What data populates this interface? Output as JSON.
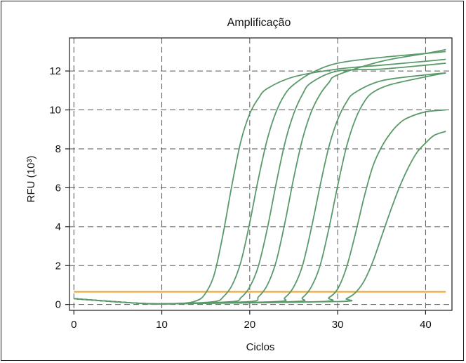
{
  "chart_data": {
    "type": "line",
    "title": "Amplificação",
    "xlabel": "Ciclos",
    "ylabel": "RFU (10³)",
    "xlim": [
      -0.5,
      43
    ],
    "ylim": [
      -0.3,
      13.7
    ],
    "x_ticks": [
      0,
      10,
      20,
      30,
      40
    ],
    "y_ticks": [
      0,
      2,
      4,
      6,
      8,
      10,
      12
    ],
    "grid": true,
    "threshold": {
      "value": 0.65,
      "color": "#f0a020"
    },
    "series_color": "#5a9a6a",
    "series": [
      {
        "x": [
          0,
          8,
          12,
          14,
          15,
          16,
          17,
          18,
          19,
          20,
          21,
          22,
          25,
          30,
          35,
          40,
          42.3
        ],
        "values": [
          0.3,
          0.05,
          0.05,
          0.2,
          0.6,
          1.6,
          3.7,
          6.2,
          8.4,
          9.8,
          10.6,
          11.1,
          11.7,
          12.1,
          12.3,
          12.5,
          12.6
        ]
      },
      {
        "x": [
          0,
          8,
          12,
          16,
          17,
          18,
          19,
          20,
          21,
          22,
          23,
          24,
          25,
          27,
          30,
          35,
          40,
          42.3
        ],
        "values": [
          0.3,
          0.05,
          0.05,
          0.15,
          0.4,
          1.0,
          2.2,
          4.2,
          6.5,
          8.5,
          9.9,
          10.8,
          11.3,
          11.9,
          12.4,
          12.7,
          12.9,
          13.0
        ]
      },
      {
        "x": [
          0,
          8,
          12,
          18,
          19,
          20,
          21,
          22,
          23,
          24,
          25,
          26,
          27,
          30,
          35,
          40,
          42.3
        ],
        "values": [
          0.3,
          0.05,
          0.05,
          0.15,
          0.35,
          0.9,
          2.0,
          3.9,
          6.2,
          8.3,
          9.8,
          10.8,
          11.4,
          12.0,
          12.1,
          12.3,
          12.4
        ]
      },
      {
        "x": [
          0,
          8,
          12,
          20,
          21,
          22,
          23,
          24,
          25,
          26,
          27,
          28,
          29,
          30,
          35,
          40,
          42.3
        ],
        "values": [
          0.3,
          0.05,
          0.05,
          0.15,
          0.4,
          1.0,
          2.2,
          4.2,
          6.5,
          8.5,
          9.9,
          10.8,
          11.4,
          11.8,
          12.5,
          12.9,
          13.1
        ]
      },
      {
        "x": [
          0,
          8,
          12,
          23,
          24,
          25,
          26,
          27,
          28,
          29,
          30,
          31,
          32,
          35,
          40,
          42.3
        ],
        "values": [
          0.3,
          0.05,
          0.05,
          0.15,
          0.35,
          0.9,
          2.0,
          3.9,
          6.1,
          8.1,
          9.5,
          10.4,
          10.9,
          11.5,
          11.8,
          11.9
        ]
      },
      {
        "x": [
          0,
          8,
          12,
          25,
          26,
          27,
          28,
          29,
          30,
          31,
          32,
          33,
          34,
          36,
          40,
          42.3
        ],
        "values": [
          0.3,
          0.05,
          0.05,
          0.15,
          0.35,
          0.9,
          2.0,
          3.9,
          6.1,
          8.1,
          9.5,
          10.4,
          10.9,
          11.3,
          11.7,
          11.9
        ]
      },
      {
        "x": [
          0,
          8,
          12,
          28,
          29,
          30,
          31,
          32,
          33,
          34,
          35,
          36,
          37,
          38,
          40,
          42.3
        ],
        "values": [
          0.3,
          0.05,
          0.05,
          0.15,
          0.35,
          0.8,
          1.9,
          3.6,
          5.5,
          7.1,
          8.1,
          8.8,
          9.3,
          9.6,
          9.9,
          10.0
        ]
      },
      {
        "x": [
          0,
          8,
          12,
          30,
          31,
          32,
          33,
          34,
          35,
          36,
          37,
          38,
          39,
          40,
          41,
          42.3
        ],
        "values": [
          0.3,
          0.05,
          0.05,
          0.15,
          0.3,
          0.6,
          1.2,
          2.2,
          3.5,
          4.8,
          6.0,
          7.0,
          7.8,
          8.3,
          8.7,
          8.9
        ]
      }
    ]
  }
}
